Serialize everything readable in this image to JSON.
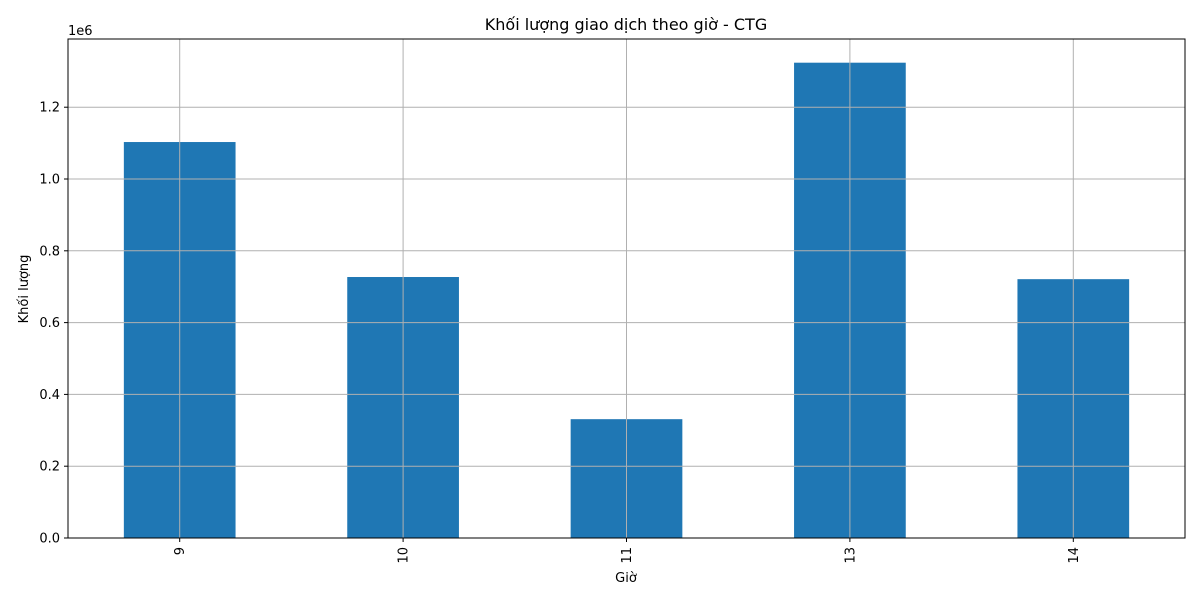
{
  "chart_data": {
    "type": "bar",
    "title": "Khối lượng giao dịch theo giờ - CTG",
    "xlabel": "Giờ",
    "ylabel": "Khối lượng",
    "categories": [
      "9",
      "10",
      "11",
      "13",
      "14"
    ],
    "values": [
      1103000,
      727000,
      331000,
      1324000,
      721000
    ],
    "ylim": [
      0,
      1390000
    ],
    "y_ticks": [
      0,
      200000,
      400000,
      600000,
      800000,
      1000000,
      1200000
    ],
    "y_tick_labels": [
      "0.0",
      "0.2",
      "0.4",
      "0.6",
      "0.8",
      "1.0",
      "1.2"
    ],
    "y_offset_label": "1e6",
    "grid": true,
    "x_tick_rotation": "vertical",
    "bar_color": "#1f77b4",
    "grid_color": "#b0b0b0"
  }
}
